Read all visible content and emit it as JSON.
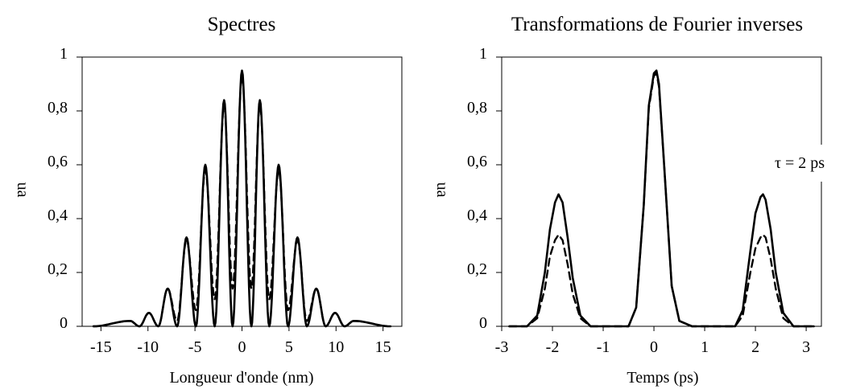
{
  "chart_data": [
    {
      "type": "line",
      "title": "Spectres",
      "xlabel": "Longueur d'onde (nm)",
      "ylabel": "ua",
      "xlim": [
        -17,
        17
      ],
      "ylim": [
        0,
        1
      ],
      "xticks": [
        "-15",
        "-10",
        "-5",
        "0",
        "5",
        "10",
        "15"
      ],
      "xtick_values": [
        -15,
        -10,
        -5,
        0,
        5,
        10,
        15
      ],
      "yticks": [
        "0",
        "0,2",
        "0,4",
        "0,6",
        "0,8",
        "1"
      ],
      "ytick_values": [
        0,
        0.2,
        0.4,
        0.6,
        0.8,
        1.0
      ],
      "grid": false,
      "series": [
        {
          "style": "solid",
          "peaks_x": [
            -11.9,
            -9.9,
            -7.9,
            -5.9,
            -3.9,
            -1.9,
            0,
            1.9,
            3.9,
            5.9,
            7.9,
            9.9,
            11.9
          ],
          "peaks_y": [
            0.02,
            0.05,
            0.14,
            0.33,
            0.6,
            0.84,
            0.95,
            0.84,
            0.6,
            0.33,
            0.14,
            0.05,
            0.02
          ],
          "minima_x": [
            -10.9,
            -8.9,
            -6.9,
            -4.9,
            -2.9,
            -1.0,
            1.0,
            2.9,
            4.9,
            6.9,
            8.9,
            10.9
          ],
          "minima_y": [
            0.0,
            0.0,
            0.0,
            0.0,
            0.0,
            0.0,
            0.0,
            0.0,
            0.0,
            0.0,
            0.0,
            0.0
          ]
        },
        {
          "style": "dashed",
          "peaks_x": [
            -11.9,
            -9.9,
            -7.9,
            -5.9,
            -3.9,
            -1.9,
            0,
            1.9,
            3.9,
            5.9,
            7.9,
            9.9,
            11.9
          ],
          "peaks_y": [
            0.02,
            0.05,
            0.14,
            0.32,
            0.58,
            0.82,
            0.93,
            0.82,
            0.58,
            0.32,
            0.14,
            0.05,
            0.02
          ],
          "minima_x": [
            -10.9,
            -8.9,
            -6.9,
            -4.9,
            -2.9,
            -1.0,
            1.0,
            2.9,
            4.9,
            6.9,
            8.9,
            10.9
          ],
          "minima_y": [
            0.0,
            0.0,
            0.02,
            0.06,
            0.1,
            0.14,
            0.14,
            0.1,
            0.06,
            0.02,
            0.0,
            0.0
          ]
        }
      ]
    },
    {
      "type": "line",
      "title": "Transformations de Fourier inverses",
      "xlabel": "Temps (ps)",
      "ylabel": "ua",
      "xlim": [
        -3,
        3.3
      ],
      "ylim": [
        0,
        1
      ],
      "xticks": [
        "-3",
        "-2",
        "-1",
        "0",
        "1",
        "2",
        "3"
      ],
      "xtick_values": [
        -3,
        -2,
        -1,
        0,
        1,
        2,
        3
      ],
      "yticks": [
        "0",
        "0,2",
        "0,4",
        "0,6",
        "0,8",
        "1"
      ],
      "ytick_values": [
        0,
        0.2,
        0.4,
        0.6,
        0.8,
        1.0
      ],
      "grid": false,
      "annotation": "τ = 2 ps",
      "series": [
        {
          "style": "solid",
          "x": [
            -2.85,
            -2.5,
            -2.3,
            -2.15,
            -2.05,
            -1.95,
            -1.88,
            -1.8,
            -1.7,
            -1.6,
            -1.45,
            -1.25,
            -0.9,
            -0.5,
            -0.35,
            -0.2,
            -0.1,
            0.0,
            0.05,
            0.1,
            0.2,
            0.35,
            0.5,
            0.75,
            1.2,
            1.6,
            1.75,
            1.9,
            2.0,
            2.1,
            2.15,
            2.2,
            2.3,
            2.4,
            2.55,
            2.75,
            3.0,
            3.15
          ],
          "y": [
            0.0,
            0.0,
            0.04,
            0.2,
            0.36,
            0.46,
            0.49,
            0.46,
            0.33,
            0.18,
            0.04,
            0.0,
            0.0,
            0.0,
            0.07,
            0.45,
            0.82,
            0.94,
            0.95,
            0.9,
            0.6,
            0.15,
            0.02,
            0.0,
            0.0,
            0.0,
            0.06,
            0.28,
            0.42,
            0.48,
            0.49,
            0.47,
            0.36,
            0.2,
            0.05,
            0.0,
            0.0,
            0.0
          ]
        },
        {
          "style": "dashed",
          "x": [
            -2.85,
            -2.5,
            -2.3,
            -2.15,
            -2.05,
            -1.95,
            -1.88,
            -1.8,
            -1.7,
            -1.6,
            -1.45,
            -1.25,
            -0.9,
            -0.5,
            -0.35,
            -0.2,
            -0.1,
            0.0,
            0.05,
            0.1,
            0.2,
            0.35,
            0.5,
            0.75,
            1.2,
            1.6,
            1.75,
            1.9,
            2.0,
            2.1,
            2.15,
            2.2,
            2.3,
            2.4,
            2.55,
            2.75,
            3.0,
            3.15
          ],
          "y": [
            0.0,
            0.0,
            0.03,
            0.14,
            0.26,
            0.32,
            0.34,
            0.32,
            0.23,
            0.12,
            0.03,
            0.0,
            0.0,
            0.0,
            0.07,
            0.45,
            0.81,
            0.93,
            0.94,
            0.89,
            0.6,
            0.15,
            0.02,
            0.0,
            0.0,
            0.0,
            0.04,
            0.2,
            0.29,
            0.33,
            0.34,
            0.33,
            0.25,
            0.14,
            0.03,
            0.0,
            0.0,
            0.0
          ]
        }
      ]
    }
  ]
}
